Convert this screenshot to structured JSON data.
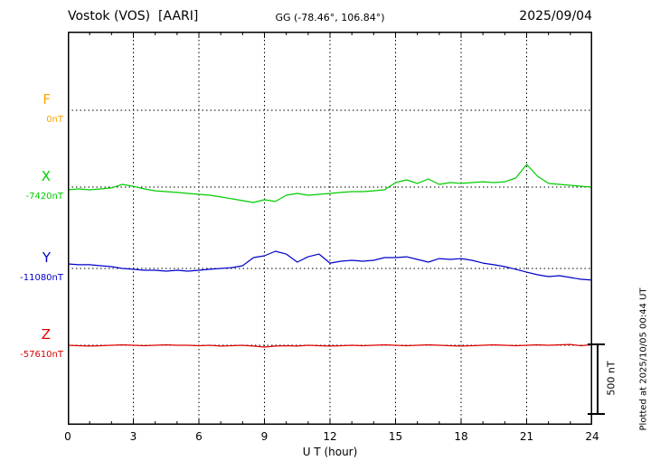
{
  "header": {
    "station": "Vostok (VOS)  [AARI]",
    "coords": "GG (-78.46°, 106.84°)",
    "date": "2025/09/04"
  },
  "xaxis": {
    "label": "U T (hour)",
    "min": 0,
    "max": 24,
    "ticks": [
      0,
      3,
      6,
      9,
      12,
      15,
      18,
      21,
      24
    ]
  },
  "scalebar": {
    "label": "500 nT",
    "nT": 500
  },
  "footer": {
    "plotted_at": "Plotted at 2025/10/05 00:44 UT"
  },
  "chart_data": {
    "type": "line",
    "title": "Vostok (VOS) [AARI] magnetogram 2025/09/04",
    "xlabel": "U T (hour)",
    "x_start": 0,
    "x_step_hours": 0.5,
    "x_range_hours": [
      0,
      24
    ],
    "grid": "dotted vertical every 3 h, dotted horizontal at each component baseline",
    "amplitude_scale_nT": 500,
    "series": [
      {
        "name": "F",
        "baseline_label": "0nT",
        "baseline_nT": 0,
        "color": "#ffa500",
        "values": []
      },
      {
        "name": "X",
        "baseline_label": "-7420nT",
        "baseline_nT": -7420,
        "color": "#00cc00",
        "values": [
          -7439,
          -7433,
          -7439,
          -7433,
          -7426,
          -7401,
          -7414,
          -7433,
          -7446,
          -7452,
          -7458,
          -7465,
          -7471,
          -7478,
          -7490,
          -7503,
          -7516,
          -7529,
          -7510,
          -7522,
          -7478,
          -7465,
          -7478,
          -7471,
          -7465,
          -7458,
          -7452,
          -7452,
          -7446,
          -7439,
          -7388,
          -7369,
          -7394,
          -7362,
          -7401,
          -7388,
          -7394,
          -7388,
          -7382,
          -7388,
          -7382,
          -7356,
          -7260,
          -7343,
          -7394,
          -7401,
          -7407,
          -7414,
          -7420
        ]
      },
      {
        "name": "Y",
        "baseline_label": "-11080nT",
        "baseline_nT": -11080,
        "color": "#0000cc",
        "values": [
          -11048,
          -11054,
          -11054,
          -11061,
          -11067,
          -11080,
          -11086,
          -11093,
          -11093,
          -11099,
          -11093,
          -11099,
          -11093,
          -11086,
          -11080,
          -11074,
          -11061,
          -11003,
          -10990,
          -10958,
          -10978,
          -11035,
          -10997,
          -10978,
          -11042,
          -11029,
          -11022,
          -11029,
          -11022,
          -11003,
          -11003,
          -10997,
          -11016,
          -11035,
          -11010,
          -11016,
          -11010,
          -11022,
          -11042,
          -11054,
          -11067,
          -11086,
          -11106,
          -11125,
          -11138,
          -11131,
          -11144,
          -11157,
          -11163
        ]
      },
      {
        "name": "Z",
        "baseline_label": "-57610nT",
        "baseline_nT": -57610,
        "color": "#dd0000",
        "values": [
          -57610,
          -57613,
          -57616,
          -57613,
          -57610,
          -57607,
          -57610,
          -57613,
          -57610,
          -57607,
          -57610,
          -57610,
          -57613,
          -57610,
          -57616,
          -57613,
          -57610,
          -57616,
          -57623,
          -57616,
          -57613,
          -57616,
          -57610,
          -57613,
          -57616,
          -57613,
          -57610,
          -57613,
          -57610,
          -57607,
          -57610,
          -57613,
          -57610,
          -57607,
          -57610,
          -57613,
          -57616,
          -57613,
          -57610,
          -57607,
          -57610,
          -57613,
          -57610,
          -57607,
          -57610,
          -57607,
          -57604,
          -57613,
          -57604
        ]
      }
    ]
  }
}
